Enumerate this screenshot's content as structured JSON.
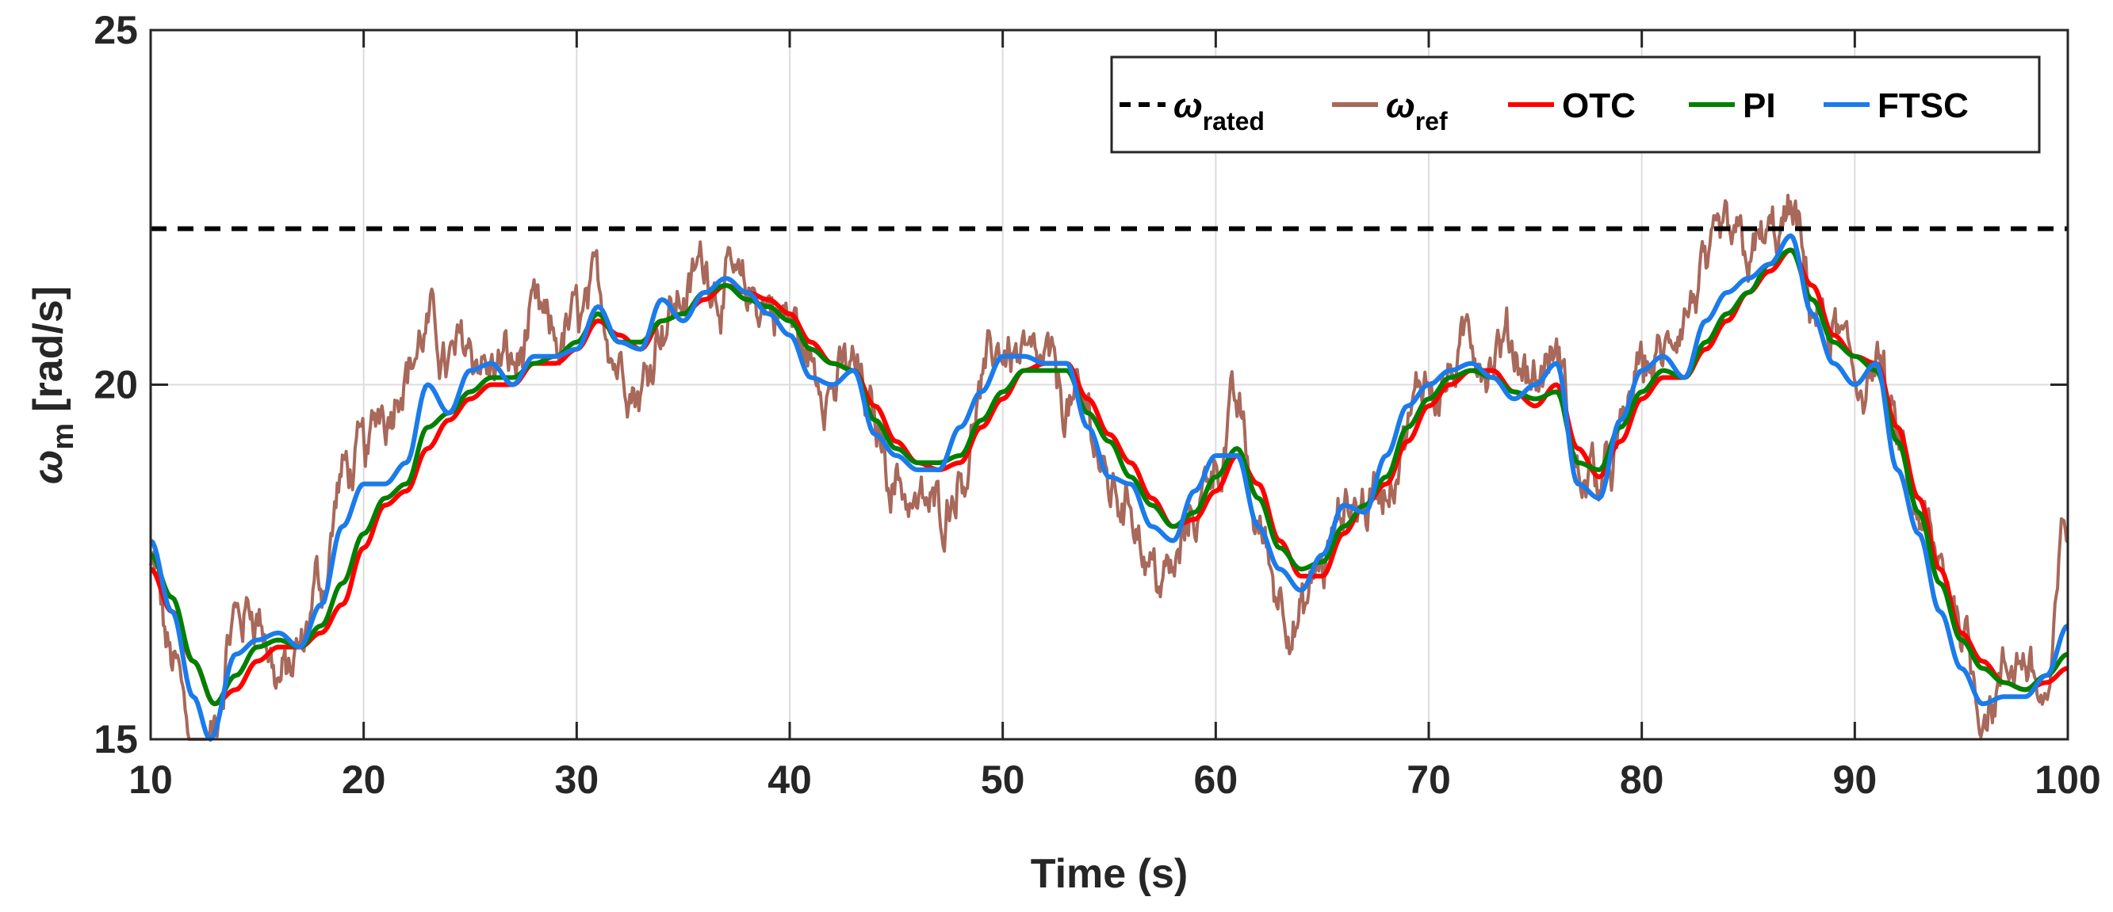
{
  "chart_data": {
    "type": "line",
    "title": "",
    "xlabel": "Time (s)",
    "ylabel": {
      "symbol": "ω",
      "subscript": "m",
      "unit": "[rad/s]"
    },
    "xlim": [
      10,
      100
    ],
    "ylim": [
      15,
      25
    ],
    "xticks": [
      10,
      20,
      30,
      40,
      50,
      60,
      70,
      80,
      90,
      100
    ],
    "yticks": [
      15,
      20,
      25
    ],
    "grid": true,
    "legend_position": "top-right",
    "legend_orientation": "horizontal",
    "rated_speed": 22.2,
    "series": [
      {
        "name": "ω_rated",
        "label_main": "ω",
        "label_sub": "rated",
        "color": "#000000",
        "style": "dashed",
        "x": [
          10,
          100
        ],
        "y": [
          22.2,
          22.2
        ]
      },
      {
        "name": "ω_ref",
        "label_main": "ω",
        "label_sub": "ref",
        "color": "#A8685A",
        "style": "solid",
        "noisy": true,
        "x": [
          10,
          11,
          12,
          12.8,
          14,
          15,
          16,
          17,
          18,
          19,
          20,
          21,
          22,
          23,
          24,
          25,
          26,
          27,
          28,
          29,
          30,
          31,
          32,
          33,
          34,
          35,
          36,
          37,
          38,
          39,
          40,
          41,
          42,
          43,
          44,
          45,
          46,
          47,
          48,
          49,
          50,
          51,
          52,
          53,
          54,
          55,
          56,
          57,
          58,
          59,
          60,
          61,
          62,
          63,
          64,
          65,
          66,
          67,
          68,
          69,
          70,
          71,
          72,
          73,
          74,
          75,
          76,
          77,
          78,
          79,
          80,
          81,
          82,
          83,
          84,
          85,
          86,
          87,
          88,
          89,
          90,
          91,
          92,
          93,
          94,
          95,
          96,
          97,
          98,
          99,
          100
        ],
        "y": [
          17.4,
          16.0,
          15.0,
          15.0,
          16.5,
          16.8,
          15.8,
          16.0,
          17.0,
          18.6,
          18.8,
          19.8,
          20.5,
          20.8,
          20.3,
          20.8,
          20.4,
          20.3,
          20.8,
          20.4,
          20.8,
          21.3,
          20.5,
          20.0,
          21.2,
          21.4,
          21.8,
          21.5,
          21.2,
          21.1,
          20.8,
          20.2,
          20.0,
          20.2,
          19.4,
          18.8,
          18.4,
          18.3,
          19.0,
          20.0,
          20.6,
          20.5,
          20.3,
          19.8,
          19.5,
          18.6,
          18.5,
          17.6,
          17.4,
          18.2,
          19.1,
          19.6,
          18.0,
          17.2,
          16.7,
          17.3,
          18.0,
          18.3,
          18.6,
          19.2,
          20.0,
          20.3,
          20.6,
          20.3,
          20.2,
          20.0,
          20.2,
          18.5,
          18.7,
          19.2,
          20.3,
          20.3,
          20.8,
          21.2,
          21.8,
          22.0,
          22.1,
          22.3,
          21.0,
          20.5,
          20.0,
          20.3,
          19.0,
          17.9,
          17.1,
          16.6,
          15.7,
          15.8,
          16.0,
          15.6,
          18.0
        ]
      },
      {
        "name": "OTC",
        "label_main": "OTC",
        "label_sub": "",
        "color": "#FF0000",
        "style": "solid",
        "x": [
          10,
          11,
          12,
          13,
          14,
          15,
          16,
          17,
          18,
          19,
          20,
          21,
          22,
          23,
          24,
          25,
          26,
          27,
          28,
          29,
          30,
          31,
          32,
          33,
          34,
          35,
          36,
          37,
          38,
          39,
          40,
          41,
          42,
          43,
          44,
          45,
          46,
          47,
          48,
          49,
          50,
          51,
          52,
          53,
          54,
          55,
          56,
          57,
          58,
          59,
          60,
          61,
          62,
          63,
          64,
          65,
          66,
          67,
          68,
          69,
          70,
          71,
          72,
          73,
          74,
          75,
          76,
          77,
          78,
          79,
          80,
          81,
          82,
          83,
          84,
          85,
          86,
          87,
          88,
          89,
          90,
          91,
          92,
          93,
          94,
          95,
          96,
          97,
          98,
          99,
          100
        ],
        "y": [
          17.4,
          16.8,
          16.1,
          15.5,
          15.7,
          16.1,
          16.3,
          16.3,
          16.5,
          16.9,
          17.7,
          18.3,
          18.5,
          19.1,
          19.5,
          19.8,
          20.0,
          20.0,
          20.3,
          20.3,
          20.5,
          20.9,
          20.7,
          20.5,
          20.9,
          21.0,
          21.2,
          21.4,
          21.3,
          21.2,
          21.0,
          20.6,
          20.3,
          20.2,
          19.7,
          19.2,
          18.9,
          18.8,
          18.9,
          19.4,
          19.8,
          20.2,
          20.3,
          20.3,
          19.8,
          19.3,
          18.9,
          18.4,
          18.0,
          18.1,
          18.5,
          19.0,
          18.6,
          17.8,
          17.3,
          17.3,
          17.9,
          18.3,
          18.6,
          19.2,
          19.7,
          20.0,
          20.2,
          20.2,
          19.9,
          19.7,
          20.0,
          19.1,
          18.7,
          19.2,
          19.8,
          20.1,
          20.1,
          20.5,
          20.9,
          21.3,
          21.6,
          21.9,
          21.4,
          20.7,
          20.4,
          20.3,
          19.4,
          18.4,
          17.4,
          16.5,
          16.1,
          15.8,
          15.7,
          15.8,
          16.0
        ]
      },
      {
        "name": "PI",
        "label_main": "PI",
        "label_sub": "",
        "color": "#008000",
        "style": "solid",
        "x": [
          10,
          11,
          12,
          13,
          14,
          15,
          16,
          17,
          18,
          19,
          20,
          21,
          22,
          23,
          24,
          25,
          26,
          27,
          28,
          29,
          30,
          31,
          32,
          33,
          34,
          35,
          36,
          37,
          38,
          39,
          40,
          41,
          42,
          43,
          44,
          45,
          46,
          47,
          48,
          49,
          50,
          51,
          52,
          53,
          54,
          55,
          56,
          57,
          58,
          59,
          60,
          61,
          62,
          63,
          64,
          65,
          66,
          67,
          68,
          69,
          70,
          71,
          72,
          73,
          74,
          75,
          76,
          77,
          78,
          79,
          80,
          81,
          82,
          83,
          84,
          85,
          86,
          87,
          88,
          89,
          90,
          91,
          92,
          93,
          94,
          95,
          96,
          97,
          98,
          99,
          100
        ],
        "y": [
          17.6,
          17.0,
          16.1,
          15.5,
          15.9,
          16.3,
          16.4,
          16.3,
          16.6,
          17.2,
          17.9,
          18.4,
          18.6,
          19.4,
          19.6,
          19.9,
          20.1,
          20.1,
          20.3,
          20.4,
          20.6,
          21.0,
          20.6,
          20.6,
          20.9,
          21.0,
          21.3,
          21.4,
          21.2,
          21.1,
          20.9,
          20.5,
          20.3,
          20.2,
          19.5,
          19.1,
          18.9,
          18.9,
          19.0,
          19.5,
          19.9,
          20.2,
          20.2,
          20.2,
          19.6,
          19.2,
          18.7,
          18.3,
          18.0,
          18.2,
          18.7,
          19.1,
          18.4,
          17.7,
          17.4,
          17.5,
          18.0,
          18.3,
          18.7,
          19.4,
          19.8,
          20.1,
          20.2,
          20.1,
          19.9,
          19.8,
          19.9,
          18.9,
          18.8,
          19.4,
          19.9,
          20.2,
          20.1,
          20.6,
          21.0,
          21.3,
          21.7,
          21.9,
          21.2,
          20.6,
          20.4,
          20.2,
          19.2,
          18.2,
          17.2,
          16.4,
          16.0,
          15.8,
          15.7,
          15.9,
          16.2
        ]
      },
      {
        "name": "FTSC",
        "label_main": "FTSC",
        "label_sub": "",
        "color": "#1B7BEB",
        "style": "solid",
        "x": [
          10,
          11,
          12,
          12.8,
          14,
          15,
          16,
          17,
          18,
          19,
          20,
          21,
          22,
          23,
          24,
          25,
          26,
          27,
          28,
          29,
          30,
          31,
          32,
          33,
          34,
          35,
          36,
          37,
          38,
          39,
          40,
          41,
          42,
          43,
          44,
          45,
          46,
          47,
          48,
          49,
          50,
          51,
          52,
          53,
          54,
          55,
          56,
          57,
          58,
          59,
          60,
          61,
          62,
          63,
          64,
          65,
          66,
          67,
          68,
          69,
          70,
          71,
          72,
          73,
          74,
          75,
          76,
          77,
          78,
          79,
          80,
          81,
          82,
          83,
          84,
          85,
          86,
          87,
          88,
          89,
          90,
          91,
          92,
          93,
          94,
          95,
          96,
          97,
          98,
          99,
          100
        ],
        "y": [
          17.8,
          16.8,
          15.6,
          15.0,
          16.2,
          16.4,
          16.5,
          16.3,
          16.9,
          18.0,
          18.6,
          18.6,
          18.9,
          20.0,
          19.6,
          20.2,
          20.3,
          20.0,
          20.4,
          20.4,
          20.5,
          21.1,
          20.6,
          20.5,
          21.2,
          20.9,
          21.3,
          21.5,
          21.3,
          21.0,
          20.7,
          20.1,
          20.0,
          20.2,
          19.3,
          19.0,
          18.8,
          18.8,
          19.4,
          19.9,
          20.4,
          20.4,
          20.3,
          20.3,
          19.4,
          18.7,
          18.6,
          18.0,
          17.8,
          18.5,
          19.0,
          19.0,
          18.0,
          17.4,
          17.1,
          17.6,
          18.3,
          18.2,
          19.0,
          19.7,
          20.0,
          20.2,
          20.3,
          20.1,
          19.8,
          20.0,
          20.3,
          18.6,
          18.4,
          19.5,
          20.2,
          20.4,
          20.1,
          20.9,
          21.3,
          21.5,
          21.7,
          22.1,
          21.0,
          20.3,
          20.0,
          20.3,
          18.8,
          17.9,
          16.8,
          16.0,
          15.5,
          15.6,
          15.6,
          15.9,
          16.6
        ]
      }
    ]
  }
}
